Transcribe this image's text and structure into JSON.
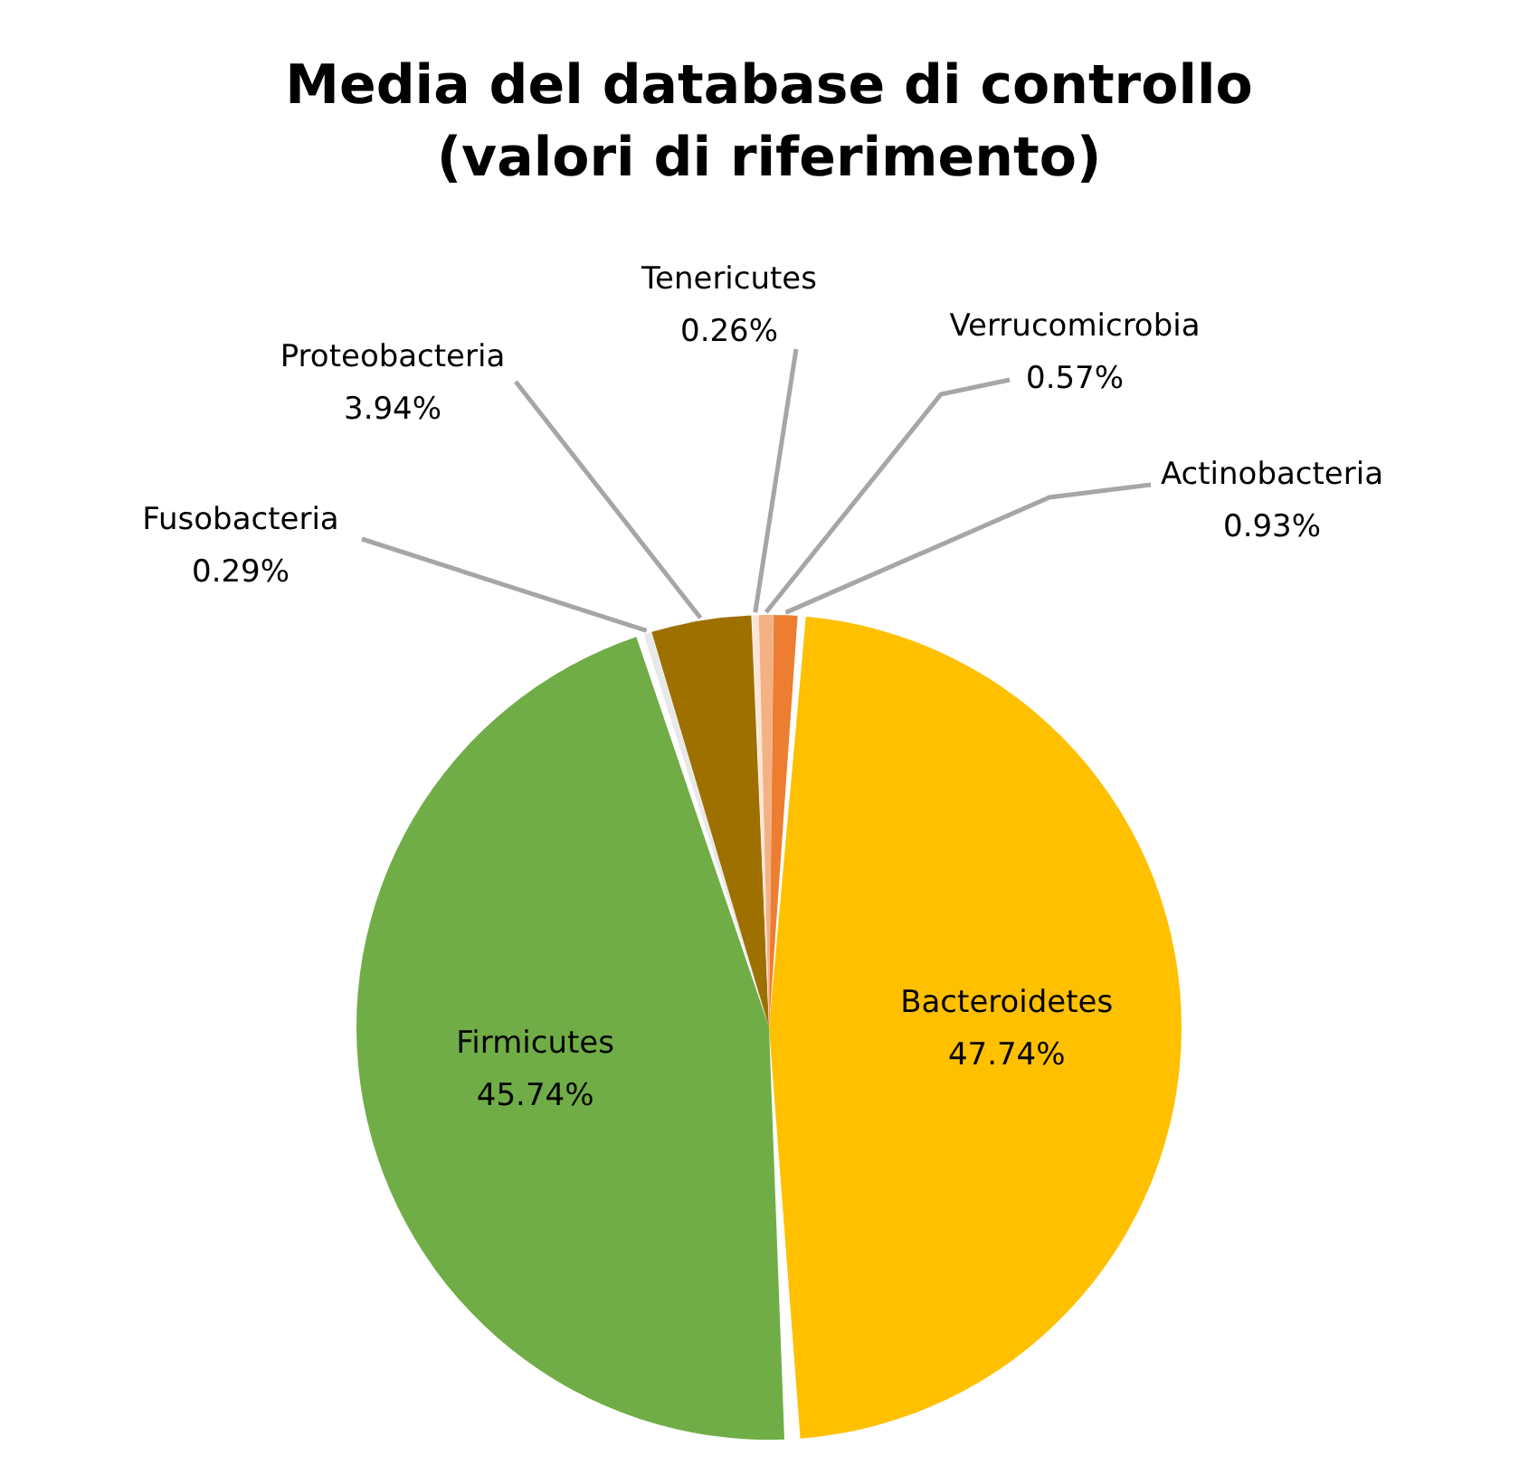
{
  "chart_data": {
    "type": "pie",
    "title": "Media del database di controllo\n(valori di riferimento)",
    "categories": [
      "Bacteroidetes",
      "Firmicutes",
      "Fusobacteria",
      "Proteobacteria",
      "Tenericutes",
      "Verrucomicrobia",
      "Actinobacteria"
    ],
    "values": [
      47.74,
      45.74,
      0.29,
      3.94,
      0.26,
      0.57,
      0.93
    ],
    "value_labels": [
      "47.74%",
      "45.74%",
      "0.29%",
      "3.94%",
      "0.26%",
      "0.57%",
      "0.93%"
    ],
    "colors": [
      "#ffc000",
      "#70ad47",
      "#e8e8e8",
      "#9e7000",
      "#fbe5d6",
      "#f4b183",
      "#ed7d31"
    ],
    "legend": false
  }
}
